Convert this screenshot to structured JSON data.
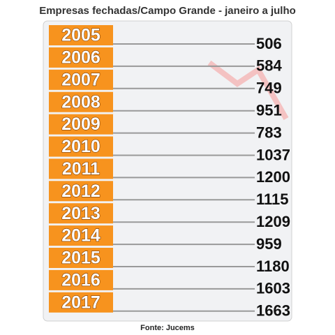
{
  "title": "Empresas fechadas/Campo Grande - janeiro a julho",
  "rows": [
    {
      "year": "2005",
      "value": 506
    },
    {
      "year": "2006",
      "value": 584
    },
    {
      "year": "2007",
      "value": 749
    },
    {
      "year": "2008",
      "value": 951
    },
    {
      "year": "2009",
      "value": 783
    },
    {
      "year": "2010",
      "value": 1037
    },
    {
      "year": "2011",
      "value": 1200
    },
    {
      "year": "2012",
      "value": 1115
    },
    {
      "year": "2013",
      "value": 1209
    },
    {
      "year": "2014",
      "value": 959
    },
    {
      "year": "2015",
      "value": 1180
    },
    {
      "year": "2016",
      "value": 1603
    },
    {
      "year": "2017",
      "value": 1663
    }
  ],
  "source": "Fonte: Jucems"
}
